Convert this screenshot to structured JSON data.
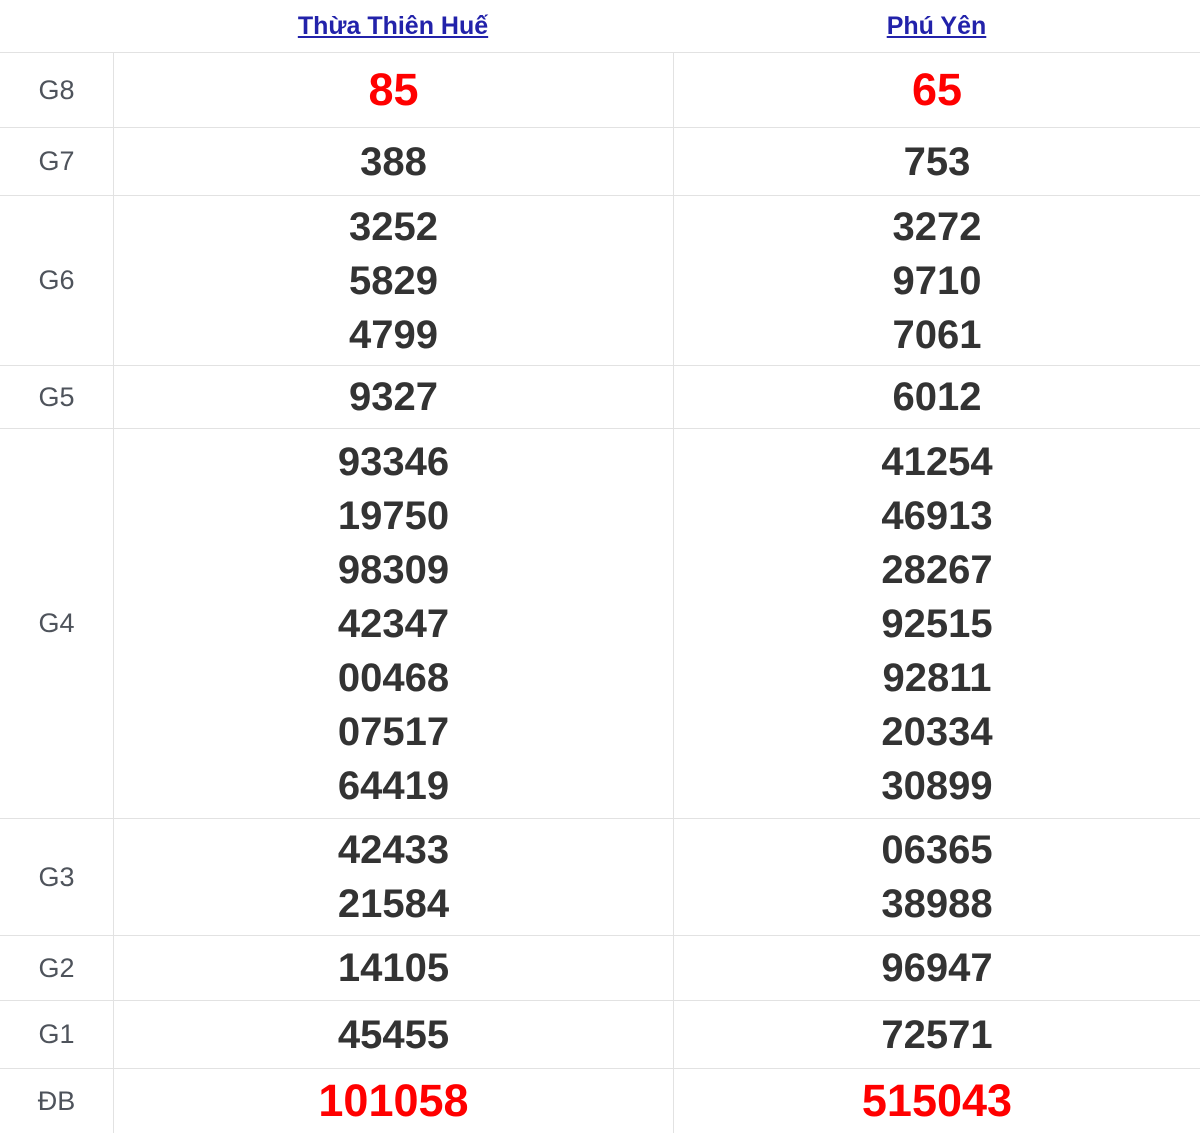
{
  "columns": {
    "hue": {
      "label": "Thừa Thiên Huế"
    },
    "phuyen": {
      "label": "Phú Yên"
    }
  },
  "results": {
    "g8": {
      "label": "G8",
      "hue": [
        "85"
      ],
      "phuyen": [
        "65"
      ]
    },
    "g7": {
      "label": "G7",
      "hue": [
        "388"
      ],
      "phuyen": [
        "753"
      ]
    },
    "g6": {
      "label": "G6",
      "hue": [
        "3252",
        "5829",
        "4799"
      ],
      "phuyen": [
        "3272",
        "9710",
        "7061"
      ]
    },
    "g5": {
      "label": "G5",
      "hue": [
        "9327"
      ],
      "phuyen": [
        "6012"
      ]
    },
    "g4": {
      "label": "G4",
      "hue": [
        "93346",
        "19750",
        "98309",
        "42347",
        "00468",
        "07517",
        "64419"
      ],
      "phuyen": [
        "41254",
        "46913",
        "28267",
        "92515",
        "92811",
        "20334",
        "30899"
      ]
    },
    "g3": {
      "label": "G3",
      "hue": [
        "42433",
        "21584"
      ],
      "phuyen": [
        "06365",
        "38988"
      ]
    },
    "g2": {
      "label": "G2",
      "hue": [
        "14105"
      ],
      "phuyen": [
        "96947"
      ]
    },
    "g1": {
      "label": "G1",
      "hue": [
        "45455"
      ],
      "phuyen": [
        "72571"
      ]
    },
    "db": {
      "label": "ĐB",
      "hue": [
        "101058"
      ],
      "phuyen": [
        "515043"
      ]
    }
  },
  "colors": {
    "highlight": "#ff0000",
    "number": "#333333",
    "link": "#2222aa",
    "label": "#4e535b",
    "border": "#e2e2e2"
  }
}
